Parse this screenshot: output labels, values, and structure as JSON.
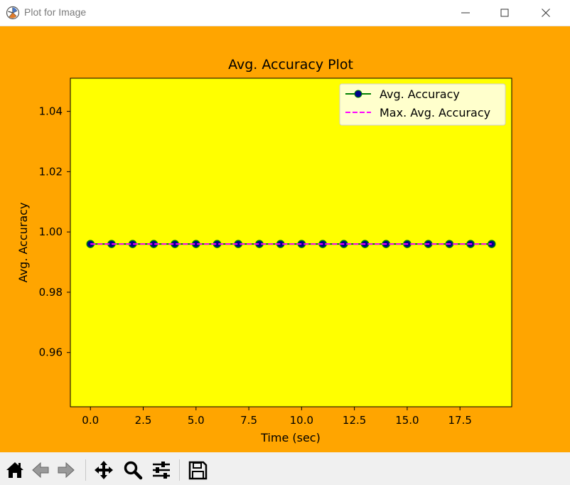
{
  "window": {
    "title": "Plot for Image"
  },
  "colors": {
    "figure_bg": "#ffa500",
    "axes_bg": "#ffff00",
    "series_line": "#008000",
    "marker_face": "#00008b",
    "max_line": "#ff00ff"
  },
  "chart_data": {
    "type": "line",
    "title": "Avg. Accuracy Plot",
    "xlabel": "Time (sec)",
    "ylabel": "Avg. Accuracy",
    "xlim": [
      -0.95,
      19.95
    ],
    "ylim": [
      0.942,
      1.051
    ],
    "xticks": [
      0.0,
      2.5,
      5.0,
      7.5,
      10.0,
      12.5,
      15.0,
      17.5
    ],
    "xtick_labels": [
      "0.0",
      "2.5",
      "5.0",
      "7.5",
      "10.0",
      "12.5",
      "15.0",
      "17.5"
    ],
    "yticks": [
      0.96,
      0.98,
      1.0,
      1.02,
      1.04
    ],
    "ytick_labels": [
      "0.96",
      "0.98",
      "1.00",
      "1.02",
      "1.04"
    ],
    "grid": false,
    "legend_position": "top-right",
    "series": [
      {
        "name": "Avg. Accuracy",
        "style": "solid-with-circle-markers",
        "x": [
          0,
          1,
          2,
          3,
          4,
          5,
          6,
          7,
          8,
          9,
          10,
          11,
          12,
          13,
          14,
          15,
          16,
          17,
          18,
          19
        ],
        "y": [
          0.996,
          0.996,
          0.996,
          0.996,
          0.996,
          0.996,
          0.996,
          0.996,
          0.996,
          0.996,
          0.996,
          0.996,
          0.996,
          0.996,
          0.996,
          0.996,
          0.996,
          0.996,
          0.996,
          0.996
        ]
      },
      {
        "name": "Max. Avg. Accuracy",
        "style": "dashed",
        "x": [
          0,
          1,
          2,
          3,
          4,
          5,
          6,
          7,
          8,
          9,
          10,
          11,
          12,
          13,
          14,
          15,
          16,
          17,
          18,
          19
        ],
        "y": [
          0.996,
          0.996,
          0.996,
          0.996,
          0.996,
          0.996,
          0.996,
          0.996,
          0.996,
          0.996,
          0.996,
          0.996,
          0.996,
          0.996,
          0.996,
          0.996,
          0.996,
          0.996,
          0.996,
          0.996
        ]
      }
    ]
  },
  "toolbar": {
    "buttons": [
      {
        "name": "home-button",
        "icon": "home-icon"
      },
      {
        "name": "back-button",
        "icon": "arrow-left-icon"
      },
      {
        "name": "forward-button",
        "icon": "arrow-right-icon"
      },
      {
        "name": "pan-button",
        "icon": "move-icon"
      },
      {
        "name": "zoom-button",
        "icon": "magnifier-icon"
      },
      {
        "name": "configure-subplots-button",
        "icon": "sliders-icon"
      },
      {
        "name": "save-button",
        "icon": "floppy-disk-icon"
      }
    ]
  }
}
